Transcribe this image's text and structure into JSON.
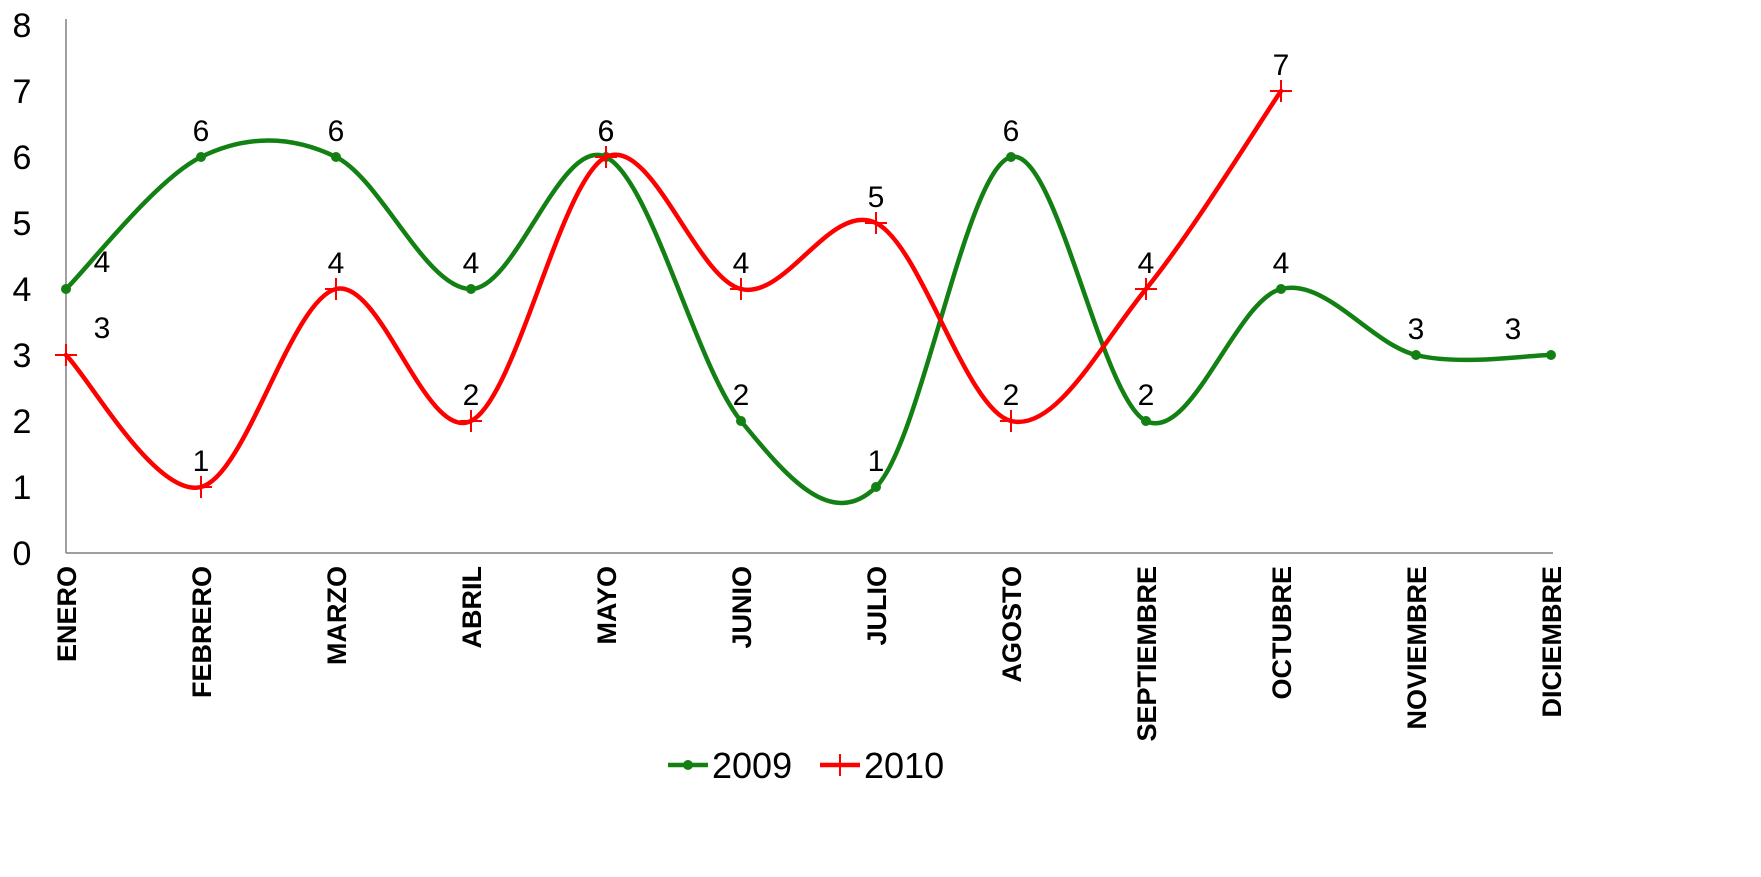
{
  "chart_data": {
    "type": "line",
    "smooth": true,
    "categories": [
      "ENERO",
      "FEBRERO",
      "MARZO",
      "ABRIL",
      "MAYO",
      "JUNIO",
      "JULIO",
      "AGOSTO",
      "SEPTIEMBRE",
      "OCTUBRE",
      "NOVIEMBRE",
      "DICIEMBRE"
    ],
    "yticks": [
      "0",
      "1",
      "2",
      "3",
      "4",
      "5",
      "6",
      "7",
      "8"
    ],
    "ylim": [
      0,
      8
    ],
    "grid": false,
    "legend_position": "bottom",
    "series": [
      {
        "name": "2009",
        "color": "#138013",
        "marker": "dot",
        "values": [
          4,
          6,
          6,
          4,
          6,
          2,
          1,
          6,
          2,
          4,
          3,
          3
        ]
      },
      {
        "name": "2010",
        "color": "#ff0000",
        "marker": "plus",
        "values": [
          3,
          1,
          4,
          2,
          6,
          4,
          5,
          2,
          4,
          7,
          null,
          null
        ]
      }
    ]
  }
}
